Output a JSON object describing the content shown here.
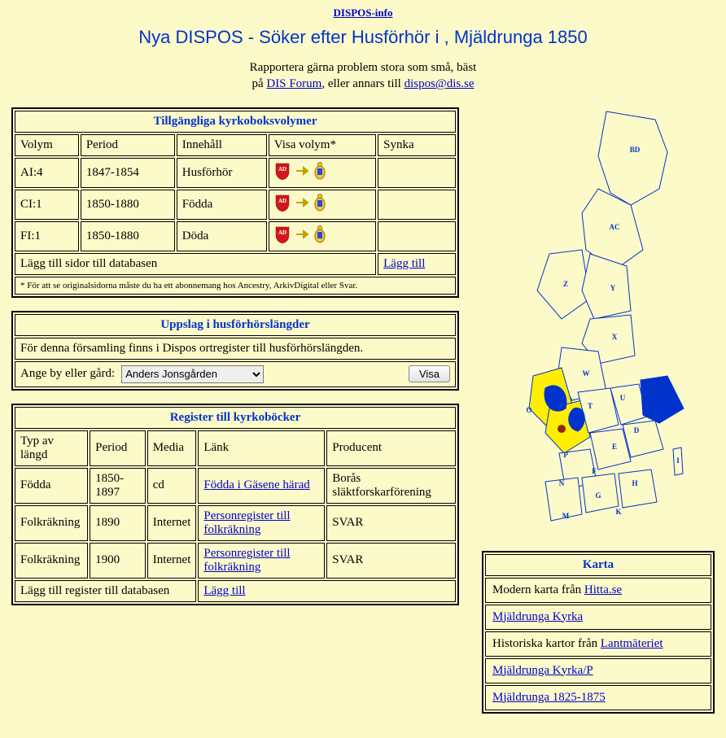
{
  "topLink": "DISPOS-info",
  "pageTitle": "Nya DISPOS - Söker efter Husförhör i , Mjäldrunga 1850",
  "report": {
    "line1_a": "Rapportera gärna problem stora som små, bäst",
    "line2_a": "på ",
    "forumLink": "DIS Forum",
    "line2_b": ", eller annars till ",
    "email": "dispos@dis.se"
  },
  "volumes": {
    "title": "Tillgängliga kyrkoboksvolymer",
    "headers": {
      "c1": "Volym",
      "c2": "Period",
      "c3": "Innehåll",
      "c4": "Visa volym*",
      "c5": "Synka"
    },
    "rows": [
      {
        "c1": "AI:4",
        "c2": "1847-1854",
        "c3": "Husförhör"
      },
      {
        "c1": "CI:1",
        "c2": "1850-1880",
        "c3": "Födda"
      },
      {
        "c1": "FI:1",
        "c2": "1850-1880",
        "c3": "Döda"
      }
    ],
    "addRowLabel": "Lägg till sidor till databasen",
    "addLink": "Lägg till",
    "footnote": "* För att se originalsidorna måste du ha ett abonnemang hos Ancestry, ArkivDigital eller Svar."
  },
  "uppslag": {
    "title": "Uppslag i husförhörslängder",
    "info": "För denna församling finns i Dispos ortregister till husförhörslängden.",
    "fieldLabel": "Ange by eller gård:",
    "selectValue": "Anders Jonsgården",
    "buttonLabel": "Visa"
  },
  "registers": {
    "title": "Register till kyrkoböcker",
    "headers": {
      "c1": "Typ av längd",
      "c2": "Period",
      "c3": "Media",
      "c4": "Länk",
      "c5": "Producent"
    },
    "rows": [
      {
        "c1": "Födda",
        "c2": "1850-1897",
        "c3": "cd",
        "c4": "Födda i Gäsene härad",
        "c5": "Borås släktforskarförening"
      },
      {
        "c1": "Folkräkning",
        "c2": "1890",
        "c3": "Internet",
        "c4": "Personregister till folkräkning",
        "c5": "SVAR"
      },
      {
        "c1": "Folkräkning",
        "c2": "1900",
        "c3": "Internet",
        "c4": "Personregister till folkräkning",
        "c5": "SVAR"
      }
    ],
    "addRowLabel": "Lägg till register till databasen",
    "addLink": "Lägg till"
  },
  "karta": {
    "title": "Karta",
    "rows": [
      {
        "prefix": "Modern karta från ",
        "link": "Hitta.se",
        "suffix": ""
      },
      {
        "prefix": "",
        "link": "Mjäldrunga Kyrka",
        "suffix": ""
      },
      {
        "prefix": "Historiska kartor från ",
        "link": "Lantmäteriet",
        "suffix": ""
      },
      {
        "prefix": "",
        "link": "Mjäldrunga Kyrka/P",
        "suffix": ""
      },
      {
        "prefix": "",
        "link": "Mjäldrunga 1825-1875",
        "suffix": ""
      }
    ]
  },
  "map": {
    "labels": [
      "BD",
      "AC",
      "Z",
      "Y",
      "X",
      "W",
      "S",
      "T",
      "U",
      "C",
      "AB",
      "D",
      "E",
      "O",
      "R",
      "P",
      "F",
      "H",
      "I",
      "N",
      "G",
      "K",
      "M"
    ]
  }
}
